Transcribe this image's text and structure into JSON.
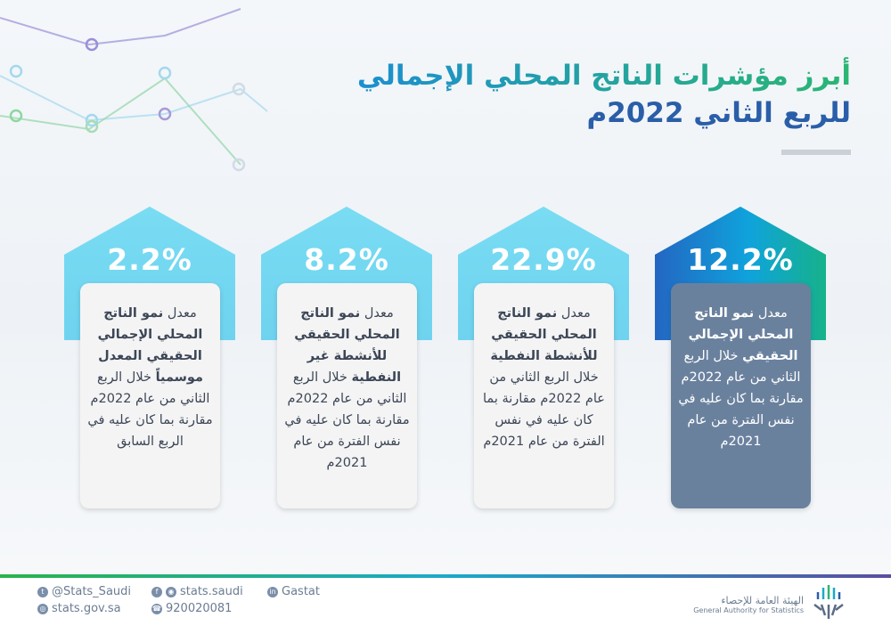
{
  "title": {
    "line1": "أبرز مؤشرات الناتج المحلي الإجمالي",
    "line2": "للربع الثاني 2022م"
  },
  "cards": [
    {
      "value": "12.2%",
      "prefix": "معدل ",
      "bold": "نمو الناتج المحلي الإجمالي الحقيقي",
      "rest": " خلال الربع الثاني من عام 2022م مقارنة بما كان عليه في نفس الفترة من عام 2021م",
      "highlight": true
    },
    {
      "value": "22.9%",
      "prefix": "معدل ",
      "bold": "نمو الناتج المحلي الحقيقي للأنشطة النفطية",
      "rest": " خلال الربع الثاني من عام 2022م مقارنة بما كان عليه في نفس الفترة من عام 2021م"
    },
    {
      "value": "8.2%",
      "prefix": "معدل ",
      "bold": "نمو الناتج المحلي الحقيقي للأنشطة غير النفطية",
      "rest": " خلال الربع الثاني من عام 2022م مقارنة بما كان عليه في نفس الفترة من عام 2021م"
    },
    {
      "value": "2.2%",
      "prefix": "معدل ",
      "bold": "نمو الناتج المحلي الإجمالي الحقيقي المعدل موسمياً",
      "rest": " خلال الربع الثاني من عام 2022م مقارنة بما كان عليه في الربع السابق"
    }
  ],
  "footer": {
    "twitter": "@Stats_Saudi",
    "website": "stats.gov.sa",
    "social": "stats.saudi",
    "phone": "920020081",
    "linkedin": "Gastat",
    "org_ar": "الهيئة العامة للإحصاء",
    "org_en": "General Authority for Statistics"
  },
  "colors": {
    "accent_green": "#2bb673",
    "accent_blue": "#2a5ea8",
    "light_arrow": "#6fd3ef",
    "dark_card": "#6a819e"
  }
}
